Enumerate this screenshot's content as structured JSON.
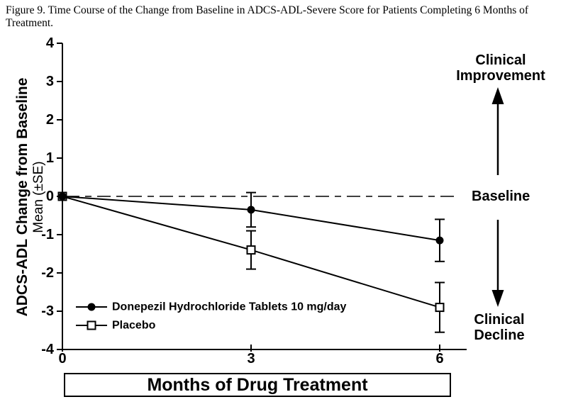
{
  "figure_title": "Figure 9. Time Course of the Change from Baseline in ADCS-ADL-Severe Score for Patients Completing 6 Months of Treatment.",
  "chart_data": {
    "type": "line",
    "title": "Figure 9. Time Course of the Change from Baseline in ADCS-ADL-Severe Score for Patients Completing 6 Months of Treatment.",
    "xlabel": "Months of Drug Treatment",
    "ylabel": "ADCS-ADL Change from Baseline",
    "ylabel_sub": "Mean (±SE)",
    "xlim": [
      0,
      6
    ],
    "ylim": [
      -4,
      4
    ],
    "xticks": [
      0,
      3,
      6
    ],
    "yticks": [
      4,
      3,
      2,
      1,
      0,
      -1,
      -2,
      -3,
      -4
    ],
    "grid": false,
    "legend_position": "lower-left-inside",
    "x": [
      0,
      3,
      6
    ],
    "series": [
      {
        "name": "Donepezil Hydrochloride Tablets 10 mg/day",
        "marker": "filled-circle",
        "values": [
          0,
          -0.35,
          -1.15
        ],
        "se": [
          0,
          0.45,
          0.55
        ]
      },
      {
        "name": "Placebo",
        "marker": "open-square",
        "values": [
          0,
          -1.4,
          -2.9
        ],
        "se": [
          0,
          0.5,
          0.65
        ]
      }
    ],
    "baseline_value": 0,
    "baseline_style": "dashed",
    "annotations": {
      "clinical_improvement": "Clinical Improvement",
      "baseline": "Baseline",
      "clinical_decline": "Clinical Decline"
    },
    "colors": {
      "foreground": "#000000",
      "background": "#ffffff"
    }
  }
}
